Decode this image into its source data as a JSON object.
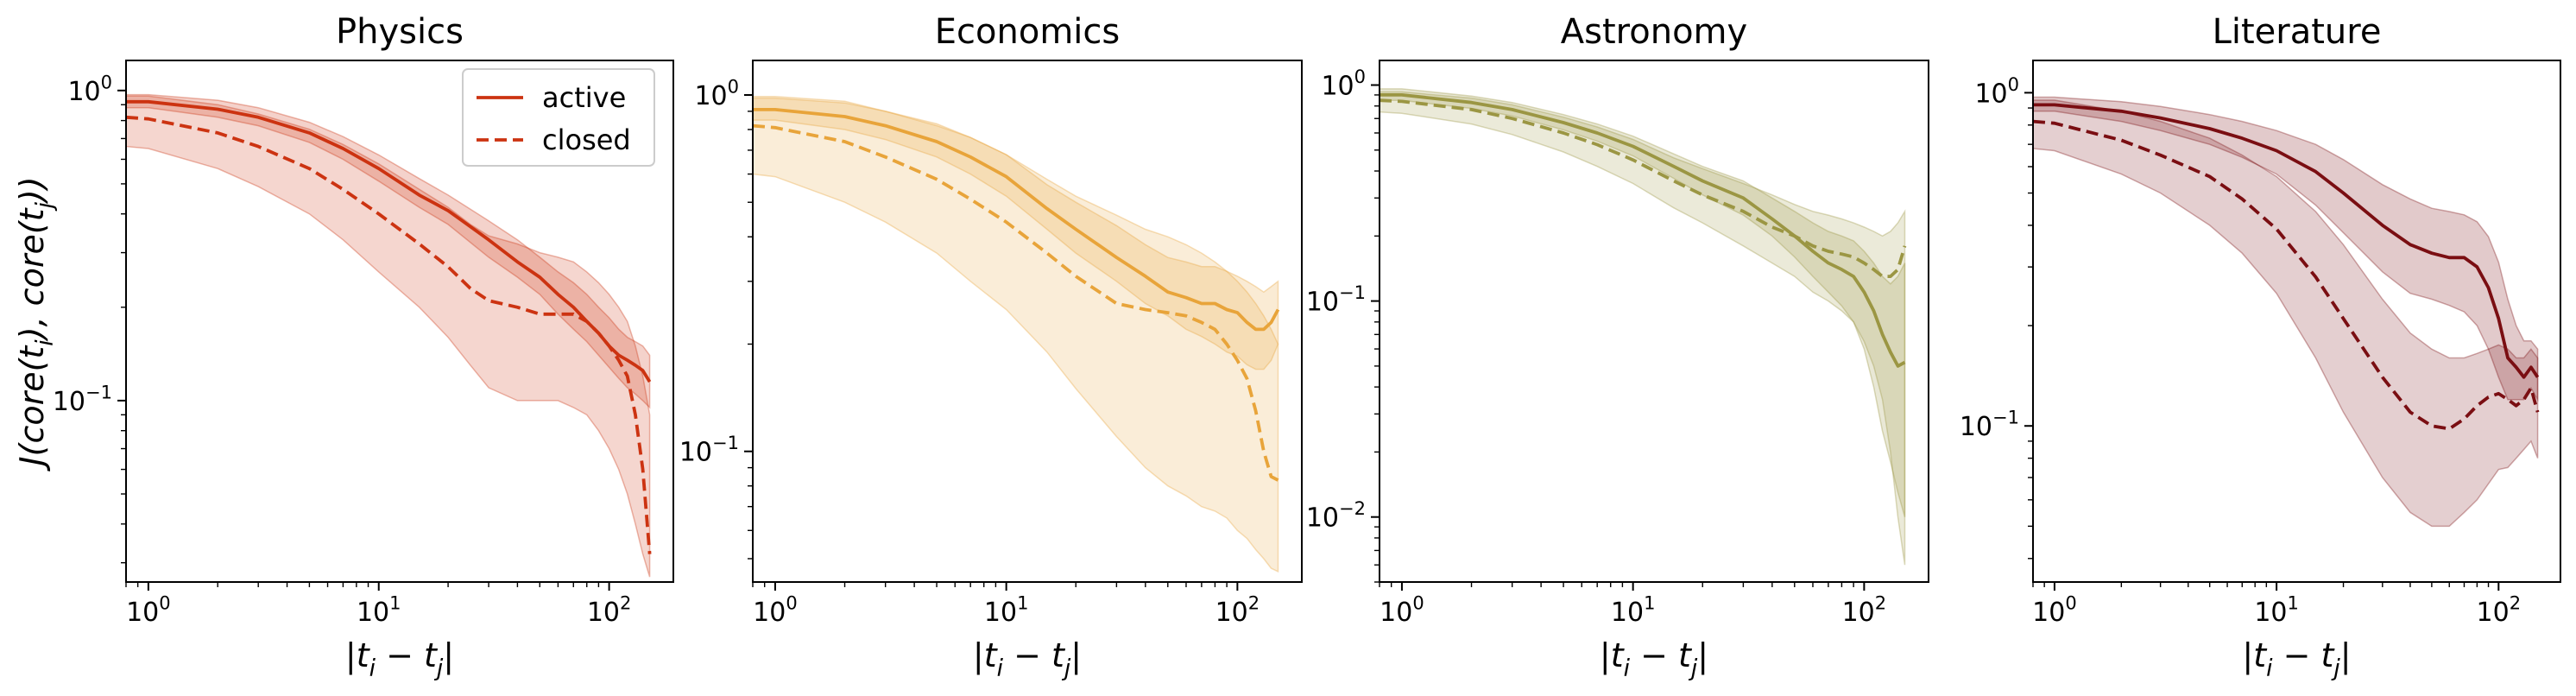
{
  "figure": {
    "ylabel_parts": [
      "J(core(t",
      "i",
      "), core(t",
      "j",
      "))"
    ],
    "xlabel_parts": [
      "|t",
      "i",
      " − t",
      "j",
      "|"
    ]
  },
  "legend": {
    "active_label": "active",
    "closed_label": "closed"
  },
  "chart_data": [
    {
      "type": "line",
      "title": "Physics",
      "xscale": "log",
      "yscale": "log",
      "xlim": [
        0.8,
        190
      ],
      "ylim": [
        0.026,
        1.25
      ],
      "xticks": [
        1,
        10,
        100
      ],
      "xtick_labels": [
        [
          "10",
          "0"
        ],
        [
          "10",
          "1"
        ],
        [
          "10",
          "2"
        ]
      ],
      "yticks": [
        0.1,
        1
      ],
      "ytick_labels": [
        [
          "10",
          "−1"
        ],
        [
          "10",
          "0"
        ]
      ],
      "legend": "top-right",
      "grid": false,
      "color": "#cc3311",
      "series": [
        {
          "name": "active",
          "style": "solid",
          "x": [
            0.8,
            1,
            2,
            3,
            5,
            7,
            10,
            15,
            20,
            30,
            40,
            50,
            60,
            70,
            80,
            90,
            100,
            110,
            120,
            130,
            140,
            150
          ],
          "y": [
            0.92,
            0.92,
            0.87,
            0.82,
            0.73,
            0.65,
            0.56,
            0.46,
            0.41,
            0.33,
            0.28,
            0.25,
            0.22,
            0.2,
            0.18,
            0.165,
            0.15,
            0.14,
            0.135,
            0.13,
            0.125,
            0.115
          ],
          "lower": [
            0.88,
            0.88,
            0.82,
            0.77,
            0.68,
            0.6,
            0.51,
            0.42,
            0.37,
            0.29,
            0.25,
            0.22,
            0.19,
            0.17,
            0.155,
            0.14,
            0.128,
            0.118,
            0.11,
            0.105,
            0.1,
            0.095
          ],
          "upper": [
            0.97,
            0.97,
            0.93,
            0.88,
            0.79,
            0.71,
            0.62,
            0.52,
            0.46,
            0.38,
            0.33,
            0.29,
            0.26,
            0.24,
            0.22,
            0.2,
            0.185,
            0.17,
            0.16,
            0.155,
            0.15,
            0.14
          ]
        },
        {
          "name": "closed",
          "style": "dashed",
          "x": [
            0.8,
            1,
            2,
            3,
            5,
            7,
            10,
            15,
            20,
            25,
            30,
            40,
            50,
            60,
            70,
            80,
            90,
            100,
            110,
            120,
            130,
            140,
            150
          ],
          "y": [
            0.82,
            0.81,
            0.73,
            0.66,
            0.56,
            0.48,
            0.4,
            0.32,
            0.27,
            0.23,
            0.21,
            0.2,
            0.19,
            0.19,
            0.19,
            0.18,
            0.165,
            0.15,
            0.135,
            0.12,
            0.09,
            0.06,
            0.032
          ],
          "lower": [
            0.66,
            0.65,
            0.56,
            0.49,
            0.4,
            0.33,
            0.26,
            0.2,
            0.16,
            0.13,
            0.11,
            0.1,
            0.1,
            0.1,
            0.095,
            0.09,
            0.08,
            0.07,
            0.06,
            0.05,
            0.04,
            0.032,
            0.027
          ],
          "upper": [
            0.96,
            0.96,
            0.9,
            0.84,
            0.75,
            0.67,
            0.58,
            0.48,
            0.42,
            0.37,
            0.34,
            0.32,
            0.3,
            0.29,
            0.28,
            0.26,
            0.24,
            0.22,
            0.2,
            0.18,
            0.15,
            0.12,
            0.09
          ]
        }
      ]
    },
    {
      "type": "line",
      "title": "Economics",
      "xscale": "log",
      "yscale": "log",
      "xlim": [
        0.8,
        190
      ],
      "ylim": [
        0.043,
        1.25
      ],
      "xticks": [
        1,
        10,
        100
      ],
      "xtick_labels": [
        [
          "10",
          "0"
        ],
        [
          "10",
          "1"
        ],
        [
          "10",
          "2"
        ]
      ],
      "yticks": [
        0.1,
        1
      ],
      "ytick_labels": [
        [
          "10",
          "−1"
        ],
        [
          "10",
          "0"
        ]
      ],
      "grid": false,
      "color": "#e8a43a",
      "series": [
        {
          "name": "active",
          "style": "solid",
          "x": [
            0.8,
            1,
            2,
            3,
            5,
            7,
            10,
            15,
            20,
            30,
            40,
            50,
            60,
            70,
            80,
            90,
            100,
            110,
            120,
            130,
            140,
            150
          ],
          "y": [
            0.91,
            0.91,
            0.87,
            0.82,
            0.74,
            0.67,
            0.59,
            0.48,
            0.42,
            0.35,
            0.31,
            0.28,
            0.27,
            0.26,
            0.26,
            0.25,
            0.245,
            0.23,
            0.22,
            0.22,
            0.23,
            0.25
          ],
          "lower": [
            0.85,
            0.85,
            0.8,
            0.75,
            0.67,
            0.6,
            0.52,
            0.42,
            0.36,
            0.3,
            0.26,
            0.24,
            0.22,
            0.21,
            0.2,
            0.19,
            0.185,
            0.175,
            0.17,
            0.17,
            0.18,
            0.2
          ],
          "upper": [
            0.98,
            0.98,
            0.95,
            0.9,
            0.83,
            0.76,
            0.68,
            0.56,
            0.5,
            0.43,
            0.38,
            0.35,
            0.34,
            0.33,
            0.33,
            0.32,
            0.31,
            0.3,
            0.29,
            0.28,
            0.29,
            0.3
          ]
        },
        {
          "name": "closed",
          "style": "dashed",
          "x": [
            0.8,
            1,
            2,
            3,
            5,
            7,
            10,
            15,
            20,
            30,
            40,
            50,
            60,
            70,
            80,
            90,
            100,
            110,
            120,
            130,
            140,
            150
          ],
          "y": [
            0.82,
            0.81,
            0.74,
            0.67,
            0.58,
            0.51,
            0.44,
            0.36,
            0.31,
            0.26,
            0.25,
            0.245,
            0.24,
            0.23,
            0.22,
            0.2,
            0.18,
            0.16,
            0.13,
            0.1,
            0.085,
            0.083
          ],
          "lower": [
            0.6,
            0.59,
            0.5,
            0.44,
            0.36,
            0.3,
            0.25,
            0.19,
            0.15,
            0.11,
            0.09,
            0.08,
            0.075,
            0.07,
            0.068,
            0.065,
            0.06,
            0.057,
            0.053,
            0.05,
            0.047,
            0.046
          ],
          "upper": [
            0.99,
            0.99,
            0.96,
            0.9,
            0.82,
            0.76,
            0.68,
            0.58,
            0.52,
            0.46,
            0.42,
            0.4,
            0.38,
            0.36,
            0.34,
            0.32,
            0.3,
            0.28,
            0.26,
            0.24,
            0.22,
            0.2
          ]
        }
      ]
    },
    {
      "type": "line",
      "title": "Astronomy",
      "xscale": "log",
      "yscale": "log",
      "xlim": [
        0.8,
        190
      ],
      "ylim": [
        0.005,
        1.3
      ],
      "xticks": [
        1,
        10,
        100
      ],
      "xtick_labels": [
        [
          "10",
          "0"
        ],
        [
          "10",
          "1"
        ],
        [
          "10",
          "2"
        ]
      ],
      "yticks": [
        0.01,
        0.1,
        1
      ],
      "ytick_labels": [
        [
          "10",
          "−2"
        ],
        [
          "10",
          "−1"
        ],
        [
          "10",
          "0"
        ]
      ],
      "grid": false,
      "color": "#9b9643",
      "series": [
        {
          "name": "active",
          "style": "solid",
          "x": [
            0.8,
            1,
            2,
            3,
            5,
            7,
            10,
            15,
            20,
            30,
            40,
            50,
            60,
            70,
            80,
            90,
            100,
            110,
            120,
            130,
            140,
            150
          ],
          "y": [
            0.9,
            0.9,
            0.83,
            0.77,
            0.67,
            0.6,
            0.52,
            0.42,
            0.36,
            0.3,
            0.24,
            0.2,
            0.17,
            0.15,
            0.14,
            0.13,
            0.11,
            0.09,
            0.07,
            0.058,
            0.05,
            0.052
          ],
          "lower": [
            0.85,
            0.85,
            0.78,
            0.72,
            0.62,
            0.55,
            0.47,
            0.37,
            0.31,
            0.25,
            0.2,
            0.16,
            0.13,
            0.11,
            0.095,
            0.08,
            0.06,
            0.04,
            0.025,
            0.018,
            0.013,
            0.01
          ],
          "upper": [
            0.96,
            0.96,
            0.89,
            0.83,
            0.73,
            0.66,
            0.58,
            0.48,
            0.42,
            0.36,
            0.3,
            0.26,
            0.23,
            0.21,
            0.2,
            0.19,
            0.17,
            0.15,
            0.13,
            0.12,
            0.13,
            0.15
          ]
        },
        {
          "name": "closed",
          "style": "dashed",
          "x": [
            0.8,
            1,
            2,
            3,
            5,
            7,
            10,
            15,
            20,
            30,
            40,
            50,
            60,
            70,
            80,
            90,
            100,
            110,
            120,
            130,
            140,
            150
          ],
          "y": [
            0.85,
            0.84,
            0.77,
            0.7,
            0.6,
            0.53,
            0.45,
            0.36,
            0.31,
            0.26,
            0.22,
            0.2,
            0.18,
            0.17,
            0.165,
            0.16,
            0.15,
            0.14,
            0.13,
            0.13,
            0.14,
            0.18
          ],
          "lower": [
            0.75,
            0.74,
            0.66,
            0.59,
            0.49,
            0.42,
            0.35,
            0.27,
            0.23,
            0.18,
            0.15,
            0.13,
            0.11,
            0.1,
            0.09,
            0.08,
            0.065,
            0.05,
            0.035,
            0.02,
            0.01,
            0.006
          ],
          "upper": [
            0.93,
            0.93,
            0.87,
            0.81,
            0.71,
            0.64,
            0.56,
            0.46,
            0.41,
            0.35,
            0.31,
            0.28,
            0.26,
            0.25,
            0.24,
            0.23,
            0.22,
            0.21,
            0.2,
            0.21,
            0.23,
            0.26
          ]
        }
      ]
    },
    {
      "type": "line",
      "title": "Literature",
      "xscale": "log",
      "yscale": "log",
      "xlim": [
        0.8,
        190
      ],
      "ylim": [
        0.034,
        1.25
      ],
      "xticks": [
        1,
        10,
        100
      ],
      "xtick_labels": [
        [
          "10",
          "0"
        ],
        [
          "10",
          "1"
        ],
        [
          "10",
          "2"
        ]
      ],
      "yticks": [
        0.1,
        1
      ],
      "ytick_labels": [
        [
          "10",
          "−1"
        ],
        [
          "10",
          "0"
        ]
      ],
      "grid": false,
      "color": "#7a0e12",
      "series": [
        {
          "name": "active",
          "style": "solid",
          "x": [
            0.8,
            1,
            2,
            3,
            5,
            7,
            10,
            15,
            20,
            30,
            40,
            50,
            60,
            70,
            80,
            90,
            100,
            110,
            120,
            130,
            140,
            150
          ],
          "y": [
            0.92,
            0.92,
            0.88,
            0.84,
            0.78,
            0.73,
            0.67,
            0.58,
            0.5,
            0.4,
            0.35,
            0.33,
            0.32,
            0.32,
            0.3,
            0.26,
            0.21,
            0.16,
            0.15,
            0.14,
            0.15,
            0.14
          ],
          "lower": [
            0.88,
            0.88,
            0.82,
            0.77,
            0.7,
            0.64,
            0.57,
            0.46,
            0.38,
            0.29,
            0.25,
            0.24,
            0.23,
            0.22,
            0.2,
            0.17,
            0.14,
            0.12,
            0.12,
            0.12,
            0.13,
            0.12
          ],
          "upper": [
            0.97,
            0.97,
            0.94,
            0.91,
            0.86,
            0.82,
            0.77,
            0.7,
            0.63,
            0.53,
            0.48,
            0.45,
            0.44,
            0.43,
            0.41,
            0.37,
            0.31,
            0.24,
            0.2,
            0.18,
            0.18,
            0.17
          ]
        },
        {
          "name": "closed",
          "style": "dashed",
          "x": [
            0.8,
            1,
            2,
            3,
            5,
            7,
            10,
            15,
            20,
            30,
            40,
            50,
            60,
            70,
            80,
            90,
            100,
            110,
            120,
            130,
            140,
            150
          ],
          "y": [
            0.82,
            0.81,
            0.72,
            0.65,
            0.56,
            0.48,
            0.39,
            0.28,
            0.21,
            0.14,
            0.11,
            0.1,
            0.098,
            0.105,
            0.115,
            0.122,
            0.125,
            0.12,
            0.115,
            0.12,
            0.13,
            0.11
          ],
          "lower": [
            0.68,
            0.67,
            0.57,
            0.5,
            0.4,
            0.33,
            0.25,
            0.16,
            0.11,
            0.07,
            0.055,
            0.05,
            0.05,
            0.055,
            0.06,
            0.067,
            0.074,
            0.075,
            0.08,
            0.085,
            0.09,
            0.08
          ],
          "upper": [
            0.95,
            0.95,
            0.88,
            0.82,
            0.73,
            0.65,
            0.56,
            0.44,
            0.35,
            0.24,
            0.19,
            0.17,
            0.16,
            0.16,
            0.165,
            0.17,
            0.175,
            0.17,
            0.16,
            0.16,
            0.17,
            0.16
          ]
        }
      ]
    }
  ]
}
